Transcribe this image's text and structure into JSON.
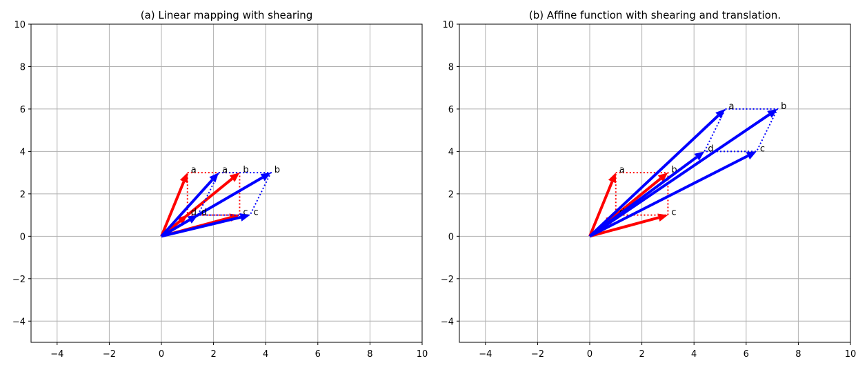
{
  "chart_data": [
    {
      "type": "line",
      "title": "(a) Linear mapping with shearing",
      "xlim": [
        -5,
        10
      ],
      "ylim": [
        -5,
        10
      ],
      "xticks": [
        -4,
        -2,
        0,
        2,
        4,
        6,
        8,
        10
      ],
      "yticks": [
        -4,
        -2,
        0,
        2,
        4,
        6,
        8,
        10
      ],
      "grid": true,
      "original": {
        "color": "#ff0000",
        "points": {
          "a": [
            1,
            3
          ],
          "b": [
            3,
            3
          ],
          "c": [
            3,
            1
          ],
          "d": [
            1,
            1
          ]
        }
      },
      "transformed": {
        "color": "#0000ff",
        "points": {
          "a": [
            2.2,
            3
          ],
          "b": [
            4.2,
            3
          ],
          "c": [
            3.4,
            1
          ],
          "d": [
            1.4,
            1
          ]
        }
      }
    },
    {
      "type": "line",
      "title": "(b) Affine function with shearing and translation.",
      "xlim": [
        -5,
        10
      ],
      "ylim": [
        -5,
        10
      ],
      "xticks": [
        -4,
        -2,
        0,
        2,
        4,
        6,
        8,
        10
      ],
      "yticks": [
        -4,
        -2,
        0,
        2,
        4,
        6,
        8,
        10
      ],
      "grid": true,
      "original": {
        "color": "#ff0000",
        "points": {
          "a": [
            1,
            3
          ],
          "b": [
            3,
            3
          ],
          "c": [
            3,
            1
          ],
          "d": [
            1,
            1
          ]
        }
      },
      "transformed": {
        "color": "#0000ff",
        "points": {
          "a": [
            5.2,
            6
          ],
          "b": [
            7.2,
            6
          ],
          "c": [
            6.4,
            4
          ],
          "d": [
            4.4,
            4
          ]
        }
      }
    }
  ]
}
